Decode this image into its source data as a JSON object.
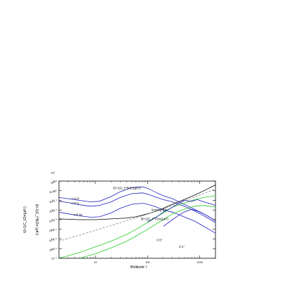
{
  "chart_data": {
    "type": "line",
    "title": "",
    "xlabel": "Multipole: l",
    "ylabel": "l(l+1)C_l^B/2π (μK²)",
    "ylabel_outer": "l(l+1)C_l/2π(μK²)",
    "x_scale": "log",
    "y_scale": "log",
    "xlim": [
      2,
      2000
    ],
    "ylim": [
      1e-07,
      10.0
    ],
    "x_ticks": [
      10,
      100,
      1000
    ],
    "x_tick_labels": [
      "10",
      "100",
      "1000"
    ],
    "y_ticks": [
      1e-07,
      1e-06,
      1e-05,
      0.0001,
      0.001,
      0.01,
      0.1,
      1,
      10
    ],
    "y_tick_labels": [
      "10⁻⁷",
      "10⁻⁶",
      "10⁻⁵",
      "10⁻⁴",
      "10⁻³",
      "10⁻²",
      "10⁻¹",
      "10⁰",
      "10¹"
    ],
    "grid": false,
    "annotations": [
      {
        "text": "l(l+1)C_l^B/2π(μK²)",
        "x": 22,
        "y": 1.5
      },
      {
        "text": "r=0.3",
        "x": 3.5,
        "y": 0.12
      },
      {
        "text": "r=0.1",
        "x": 3.5,
        "y": 0.04
      },
      {
        "text": "r=0.01",
        "x": 3.8,
        "y": 0.0025
      },
      {
        "text": "lensing BB",
        "x": 120,
        "y": 0.008
      },
      {
        "text": "l(l+1)C_l^T/2π(μK²)",
        "x": 75,
        "y": 0.0009
      },
      {
        "text": "0.5°",
        "x": 150,
        "y": 6e-06
      },
      {
        "text": "0.1°",
        "x": 400,
        "y": 1.2e-06
      }
    ],
    "series": [
      {
        "color": "#2020c0",
        "style": "solid",
        "x": [
          2,
          3,
          5,
          8,
          12,
          20,
          30,
          50,
          80,
          100,
          150,
          200,
          300,
          500,
          800,
          1200,
          2000
        ],
        "y": [
          0.2,
          0.15,
          0.1,
          0.07,
          0.08,
          0.25,
          0.8,
          2.2,
          2.5,
          1.8,
          0.6,
          0.3,
          0.15,
          0.04,
          0.012,
          0.004,
          0.0008
        ]
      },
      {
        "color": "#2020c0",
        "style": "solid",
        "x": [
          2,
          3,
          5,
          8,
          12,
          20,
          30,
          50,
          80,
          100,
          150,
          200,
          300,
          500,
          800,
          1200,
          2000
        ],
        "y": [
          0.08,
          0.06,
          0.035,
          0.025,
          0.03,
          0.07,
          0.2,
          0.5,
          0.6,
          0.45,
          0.2,
          0.12,
          0.07,
          0.025,
          0.008,
          0.0025,
          0.0005
        ]
      },
      {
        "color": "#2020c0",
        "style": "solid",
        "x": [
          2,
          3,
          5,
          8,
          12,
          20,
          30,
          50,
          80,
          100,
          150,
          200,
          300,
          500,
          800,
          1200,
          2000
        ],
        "y": [
          0.006,
          0.004,
          0.0025,
          0.0018,
          0.002,
          0.005,
          0.015,
          0.04,
          0.05,
          0.04,
          0.02,
          0.01,
          0.006,
          0.002,
          0.0007,
          0.0002,
          4e-05
        ]
      },
      {
        "color": "#000000",
        "style": "solid",
        "x": [
          2,
          5,
          10,
          20,
          40,
          60,
          100,
          150,
          200,
          300,
          500,
          800,
          1200,
          2000
        ],
        "y": [
          0.0012,
          0.001,
          0.001,
          0.0012,
          0.0015,
          0.002,
          0.004,
          0.008,
          0.015,
          0.04,
          0.12,
          0.35,
          1,
          4
        ]
      },
      {
        "color": "#888888",
        "style": "dashed",
        "x": [
          2,
          5,
          10,
          20,
          40,
          80,
          150,
          300,
          600,
          1000,
          2000
        ],
        "y": [
          6e-06,
          2.5e-05,
          8e-05,
          0.00025,
          0.0008,
          0.0025,
          0.008,
          0.03,
          0.12,
          0.35,
          1.5
        ]
      },
      {
        "color": "#22cc22",
        "style": "solid",
        "x": [
          2,
          5,
          10,
          20,
          40,
          60,
          100,
          150,
          200,
          300,
          500,
          800,
          1200,
          2000
        ],
        "y": [
          1e-07,
          4e-07,
          1.5e-06,
          6e-06,
          3e-05,
          0.0001,
          0.0005,
          0.002,
          0.005,
          0.02,
          0.05,
          0.12,
          0.2,
          0.3
        ]
      },
      {
        "color": "#22cc22",
        "style": "solid",
        "x": [
          5,
          10,
          20,
          40,
          60,
          100,
          150,
          200,
          300,
          500,
          800,
          1200,
          2000
        ],
        "y": [
          1e-07,
          3e-07,
          1.2e-06,
          6e-06,
          2e-05,
          0.0001,
          0.0004,
          0.001,
          0.004,
          0.012,
          0.025,
          0.03,
          0.02
        ]
      },
      {
        "color": "#2020c0",
        "style": "solid",
        "x": [
          100,
          150,
          200,
          300,
          400,
          500,
          700,
          900,
          1200,
          1500,
          2000
        ],
        "y": [
          0.0006,
          0.002,
          0.006,
          0.02,
          0.05,
          0.1,
          0.08,
          0.12,
          0.07,
          0.05,
          0.03
        ]
      },
      {
        "color": "#2020c0",
        "style": "solid",
        "x": [
          200,
          300,
          400,
          500,
          700,
          900,
          1200,
          1500,
          2000
        ],
        "y": [
          0.0002,
          0.001,
          0.003,
          0.006,
          0.012,
          0.008,
          0.004,
          0.002,
          0.0008
        ]
      }
    ]
  }
}
